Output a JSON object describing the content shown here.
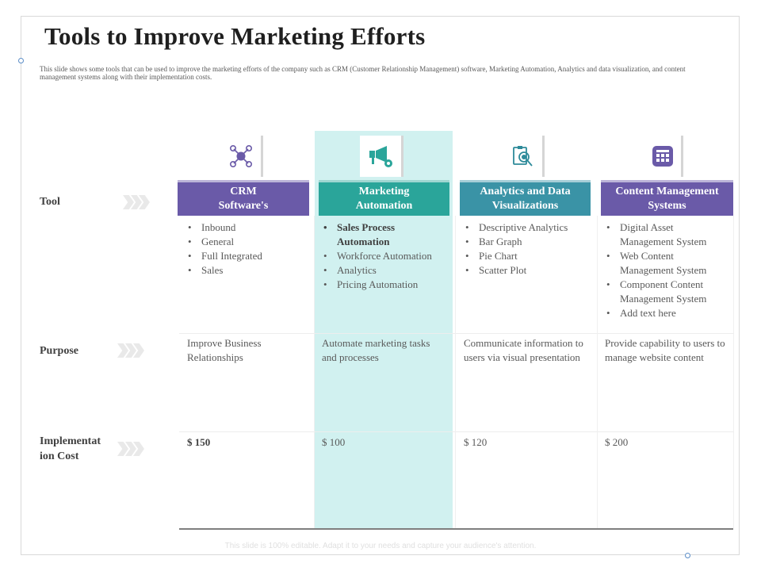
{
  "title": "Tools to Improve Marketing Efforts",
  "description": "This slide shows some tools that can be used to improve the marketing efforts of the company such as CRM (Customer Relationship Management) software, Marketing Automation, Analytics and data visualization, and content management systems along with their implementation costs.",
  "row_labels": {
    "tool": "Tool",
    "purpose": "Purpose",
    "cost_line1": "Implementat",
    "cost_line2": "ion Cost"
  },
  "columns": [
    {
      "icon": "network-nodes-icon",
      "header": "CRM\nSoftware's",
      "header_color": "#6a5aa8",
      "items": [
        "Inbound",
        "General",
        "Full Integrated",
        "Sales"
      ],
      "purpose": "Improve Business Relationships",
      "cost": "$ 150"
    },
    {
      "icon": "megaphone-gear-icon",
      "header": "Marketing\nAutomation",
      "header_color": "#2aa59a",
      "items": [
        "Sales Process Automation",
        "Workforce Automation",
        "Analytics",
        "Pricing Automation"
      ],
      "purpose": "Automate marketing tasks and processes",
      "cost": "$ 100"
    },
    {
      "icon": "clipboard-magnifier-icon",
      "header": "Analytics and Data\nVisualizations",
      "header_color": "#3a93a6",
      "items": [
        "Descriptive Analytics",
        "Bar Graph",
        "Pie Chart",
        "Scatter Plot"
      ],
      "purpose": "Communicate information to users via visual presentation",
      "cost": "$ 120"
    },
    {
      "icon": "content-grid-icon",
      "header": "Content Management\nSystems",
      "header_color": "#6a5aa8",
      "items": [
        "Digital Asset Management System",
        "Web Content Management System",
        "Component Content Management System",
        "Add text here"
      ],
      "purpose": "Provide capability to users to manage  website content",
      "cost": "$ 200"
    }
  ],
  "colors": {
    "purple": "#6a5aa8",
    "teal": "#2aa59a",
    "blue_teal": "#3a93a6",
    "highlight": "#d1f1f0"
  },
  "footer": "This slide is 100% editable. Adapt it to your needs and capture your audience's attention."
}
